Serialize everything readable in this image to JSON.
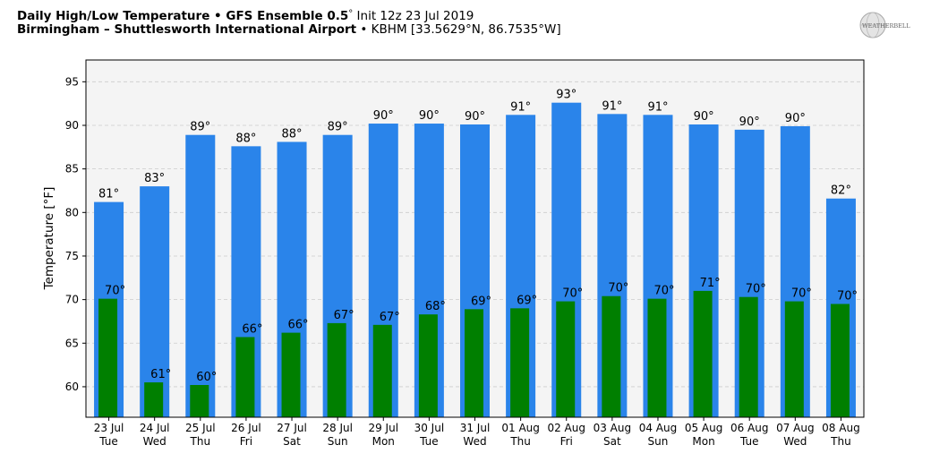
{
  "header": {
    "title_bold": "Daily High/Low Temperature • GFS Ensemble 0.5",
    "title_deg": "°",
    "title_rest": " Init 12z 23 Jul 2019",
    "location_bold": "Birmingham – Shuttlesworth International Airport",
    "location_rest": " • KBHM [33.5629°N, 86.7535°W]"
  },
  "logo": {
    "text": "WEATHERBELL",
    "icon": "weatherbell-globe-logo"
  },
  "chart_data": {
    "type": "bar",
    "ylabel": "Temperature [°F]",
    "xlabel": "",
    "ylim": [
      56.5,
      97.5
    ],
    "yticks": [
      60,
      65,
      70,
      75,
      80,
      85,
      90,
      95
    ],
    "grid": true,
    "categories": [
      [
        "23 Jul",
        "Tue"
      ],
      [
        "24 Jul",
        "Wed"
      ],
      [
        "25 Jul",
        "Thu"
      ],
      [
        "26 Jul",
        "Fri"
      ],
      [
        "27 Jul",
        "Sat"
      ],
      [
        "28 Jul",
        "Sun"
      ],
      [
        "29 Jul",
        "Mon"
      ],
      [
        "30 Jul",
        "Tue"
      ],
      [
        "31 Jul",
        "Wed"
      ],
      [
        "01 Aug",
        "Thu"
      ],
      [
        "02 Aug",
        "Fri"
      ],
      [
        "03 Aug",
        "Sat"
      ],
      [
        "04 Aug",
        "Sun"
      ],
      [
        "05 Aug",
        "Mon"
      ],
      [
        "06 Aug",
        "Tue"
      ],
      [
        "07 Aug",
        "Wed"
      ],
      [
        "08 Aug",
        "Thu"
      ]
    ],
    "series": [
      {
        "color": "#2a84ea",
        "values": [
          81.2,
          83.0,
          88.9,
          87.6,
          88.1,
          88.9,
          90.2,
          90.2,
          90.1,
          91.2,
          92.6,
          91.3,
          91.2,
          90.1,
          89.5,
          89.9,
          81.6
        ],
        "labels": [
          "81°",
          "83°",
          "89°",
          "88°",
          "88°",
          "89°",
          "90°",
          "90°",
          "90°",
          "91°",
          "93°",
          "91°",
          "91°",
          "90°",
          "90°",
          "90°",
          "82°"
        ]
      },
      {
        "color": "#007f00",
        "values": [
          70.1,
          60.5,
          60.2,
          65.7,
          66.2,
          67.3,
          67.1,
          68.3,
          68.9,
          69.0,
          69.8,
          70.4,
          70.1,
          71.0,
          70.3,
          69.8,
          69.5
        ],
        "labels": [
          "70°",
          "61°",
          "60°",
          "66°",
          "66°",
          "67°",
          "67°",
          "68°",
          "69°",
          "69°",
          "70°",
          "70°",
          "70°",
          "71°",
          "70°",
          "70°",
          "70°"
        ]
      }
    ]
  }
}
